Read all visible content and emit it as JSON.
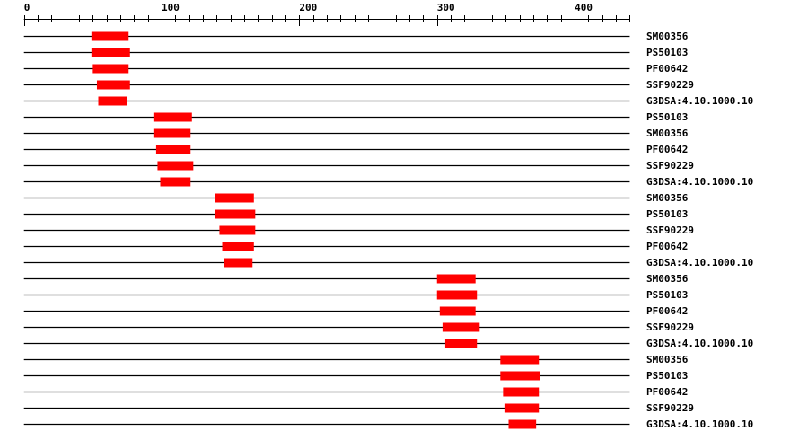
{
  "axis": {
    "min": 0,
    "max": 440,
    "major_ticks": [
      0,
      100,
      200,
      300,
      400
    ],
    "minor_step": 10
  },
  "colors": {
    "domain_bar": "#ff0000",
    "line": "#000000"
  },
  "rows": [
    {
      "label": "SM00356",
      "start": 49,
      "end": 76
    },
    {
      "label": "PS50103",
      "start": 49,
      "end": 77
    },
    {
      "label": "PF00642",
      "start": 50,
      "end": 76
    },
    {
      "label": "SSF90229",
      "start": 53,
      "end": 77
    },
    {
      "label": "G3DSA:4.10.1000.10",
      "start": 54,
      "end": 75
    },
    {
      "label": "PS50103",
      "start": 94,
      "end": 122
    },
    {
      "label": "SM00356",
      "start": 94,
      "end": 121
    },
    {
      "label": "PF00642",
      "start": 96,
      "end": 121
    },
    {
      "label": "SSF90229",
      "start": 97,
      "end": 123
    },
    {
      "label": "G3DSA:4.10.1000.10",
      "start": 99,
      "end": 121
    },
    {
      "label": "SM00356",
      "start": 139,
      "end": 167
    },
    {
      "label": "PS50103",
      "start": 139,
      "end": 168
    },
    {
      "label": "SSF90229",
      "start": 142,
      "end": 168
    },
    {
      "label": "PF00642",
      "start": 144,
      "end": 167
    },
    {
      "label": "G3DSA:4.10.1000.10",
      "start": 145,
      "end": 166
    },
    {
      "label": "SM00356",
      "start": 300,
      "end": 328
    },
    {
      "label": "PS50103",
      "start": 300,
      "end": 329
    },
    {
      "label": "PF00642",
      "start": 302,
      "end": 328
    },
    {
      "label": "SSF90229",
      "start": 304,
      "end": 331
    },
    {
      "label": "G3DSA:4.10.1000.10",
      "start": 306,
      "end": 329
    },
    {
      "label": "SM00356",
      "start": 346,
      "end": 374
    },
    {
      "label": "PS50103",
      "start": 346,
      "end": 375
    },
    {
      "label": "PF00642",
      "start": 348,
      "end": 374
    },
    {
      "label": "SSF90229",
      "start": 349,
      "end": 374
    },
    {
      "label": "G3DSA:4.10.1000.10",
      "start": 352,
      "end": 372
    }
  ]
}
